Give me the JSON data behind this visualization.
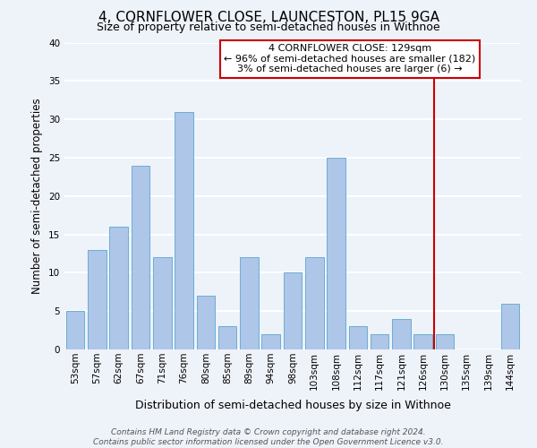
{
  "title": "4, CORNFLOWER CLOSE, LAUNCESTON, PL15 9GA",
  "subtitle": "Size of property relative to semi-detached houses in Withnoe",
  "xlabel": "Distribution of semi-detached houses by size in Withnoe",
  "ylabel": "Number of semi-detached properties",
  "bar_labels": [
    "53sqm",
    "57sqm",
    "62sqm",
    "67sqm",
    "71sqm",
    "76sqm",
    "80sqm",
    "85sqm",
    "89sqm",
    "94sqm",
    "98sqm",
    "103sqm",
    "108sqm",
    "112sqm",
    "117sqm",
    "121sqm",
    "126sqm",
    "130sqm",
    "135sqm",
    "139sqm",
    "144sqm"
  ],
  "bar_values": [
    5,
    13,
    16,
    24,
    12,
    31,
    7,
    3,
    12,
    2,
    10,
    12,
    25,
    3,
    2,
    4,
    2,
    2,
    0,
    0,
    6
  ],
  "bar_color": "#aec6e8",
  "bar_edge_color": "#6aaed6",
  "vline_x_index": 17,
  "vline_color": "#cc0000",
  "annotation_line1": "4 CORNFLOWER CLOSE: 129sqm",
  "annotation_line2": "← 96% of semi-detached houses are smaller (182)",
  "annotation_line3": "3% of semi-detached houses are larger (6) →",
  "annotation_box_facecolor": "white",
  "annotation_box_edgecolor": "#cc0000",
  "ylim": [
    0,
    40
  ],
  "yticks": [
    0,
    5,
    10,
    15,
    20,
    25,
    30,
    35,
    40
  ],
  "footer_line1": "Contains HM Land Registry data © Crown copyright and database right 2024.",
  "footer_line2": "Contains public sector information licensed under the Open Government Licence v3.0.",
  "background_color": "#eef2f9",
  "grid_color": "white",
  "title_fontsize": 11,
  "subtitle_fontsize": 9,
  "tick_fontsize": 7.5,
  "ylabel_fontsize": 8.5,
  "xlabel_fontsize": 9,
  "annotation_fontsize": 8,
  "footer_fontsize": 6.5
}
